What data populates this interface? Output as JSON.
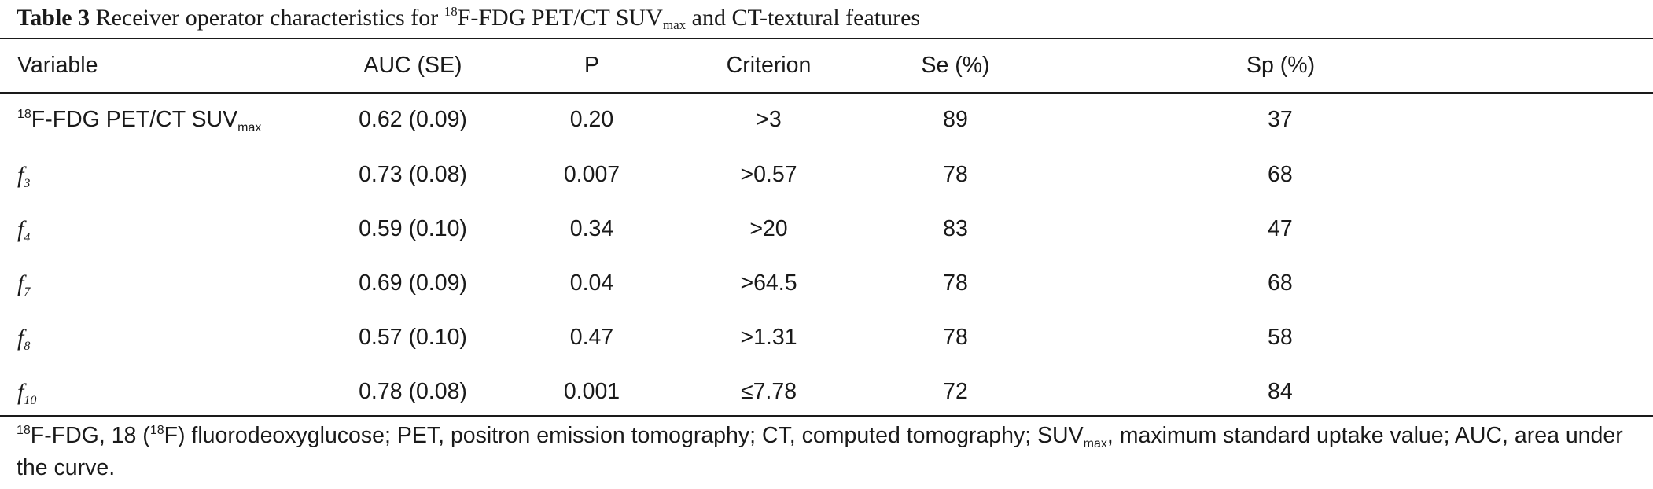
{
  "table": {
    "label": "Table 3",
    "caption_pre": "Receiver operator characteristics for ",
    "caption_sup": "18",
    "caption_mid": "F-FDG PET/CT SUV",
    "caption_sub": "max",
    "caption_post": " and CT-textural features",
    "columns": [
      "Variable",
      "AUC (SE)",
      "P",
      "Criterion",
      "Se (%)",
      "Sp (%)"
    ],
    "rows": [
      {
        "var_sup": "18",
        "var_main": "F-FDG PET/CT SUV",
        "var_sub": "max",
        "auc": "0.62 (0.09)",
        "p": "0.20",
        "criterion": ">3",
        "se": "89",
        "sp": "37"
      },
      {
        "var_main": "f",
        "var_sub": "3",
        "auc": "0.73 (0.08)",
        "p": "0.007",
        "criterion": ">0.57",
        "se": "78",
        "sp": "68"
      },
      {
        "var_main": "f",
        "var_sub": "4",
        "auc": "0.59 (0.10)",
        "p": "0.34",
        "criterion": ">20",
        "se": "83",
        "sp": "47"
      },
      {
        "var_main": "f",
        "var_sub": "7",
        "auc": "0.69 (0.09)",
        "p": "0.04",
        "criterion": ">64.5",
        "se": "78",
        "sp": "68"
      },
      {
        "var_main": "f",
        "var_sub": "8",
        "auc": "0.57 (0.10)",
        "p": "0.47",
        "criterion": ">1.31",
        "se": "78",
        "sp": "58"
      },
      {
        "var_main": "f",
        "var_sub": "10",
        "auc": "0.78 (0.08)",
        "p": "0.001",
        "criterion": "≤7.78",
        "se": "72",
        "sp": "84"
      }
    ],
    "footnote": {
      "sup1": "18",
      "part1": "F-FDG, 18 (",
      "sup2": "18",
      "part2": "F) fluorodeoxyglucose; PET, positron emission tomography; CT, computed tomography; SUV",
      "sub": "max",
      "part3": ", maximum standard uptake value; AUC, area under the curve."
    }
  }
}
